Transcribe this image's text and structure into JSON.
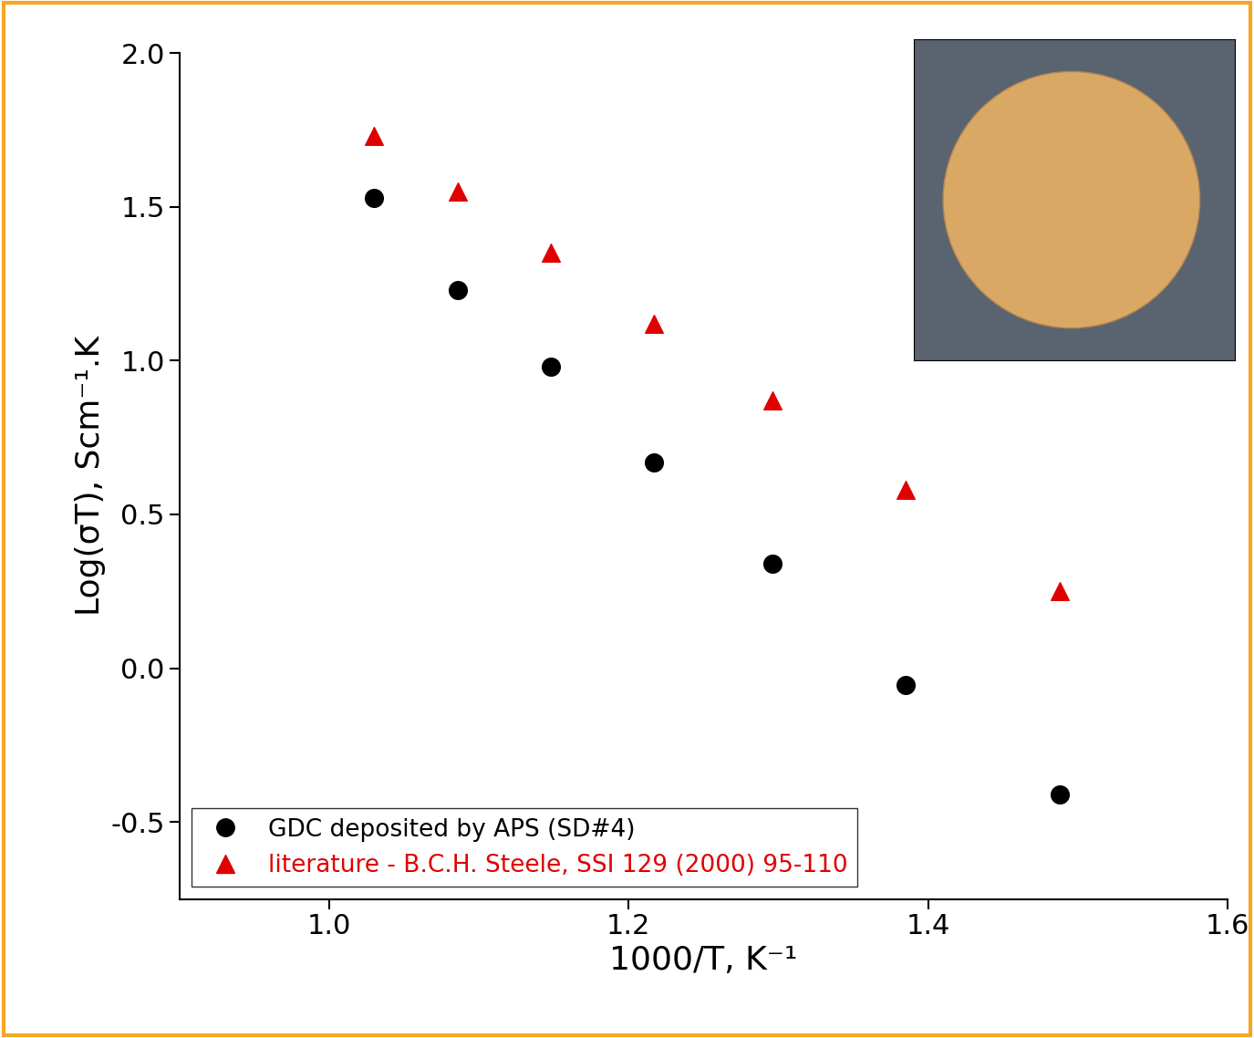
{
  "chart_data": {
    "type": "scatter",
    "x_label": "1000/T, K⁻¹",
    "y_label": "Log(σT), Scm⁻¹.K",
    "series": [
      {
        "name": "GDC deposited by APS (SD#4)",
        "color": "#000000",
        "marker": "circle",
        "x": [
          1.03,
          1.086,
          1.148,
          1.217,
          1.296,
          1.385,
          1.488
        ],
        "values": [
          1.53,
          1.23,
          0.98,
          0.67,
          0.34,
          -0.055,
          -0.41
        ]
      },
      {
        "name": "literature - B.C.H. Steele, SSI 129 (2000) 95-110",
        "color": "#e00000",
        "marker": "triangle",
        "x": [
          1.03,
          1.086,
          1.148,
          1.217,
          1.296,
          1.385,
          1.488
        ],
        "values": [
          1.73,
          1.55,
          1.35,
          1.12,
          0.87,
          0.58,
          0.25
        ]
      }
    ],
    "xlim": [
      0.9,
      1.6
    ],
    "xticks": [
      1.0,
      1.2,
      1.4,
      1.6
    ],
    "ylim": [
      -0.75,
      2.0
    ],
    "yticks": [
      -0.5,
      0.0,
      0.5,
      1.0,
      1.5,
      2.0
    ],
    "grid": false,
    "legend": "lower left"
  }
}
